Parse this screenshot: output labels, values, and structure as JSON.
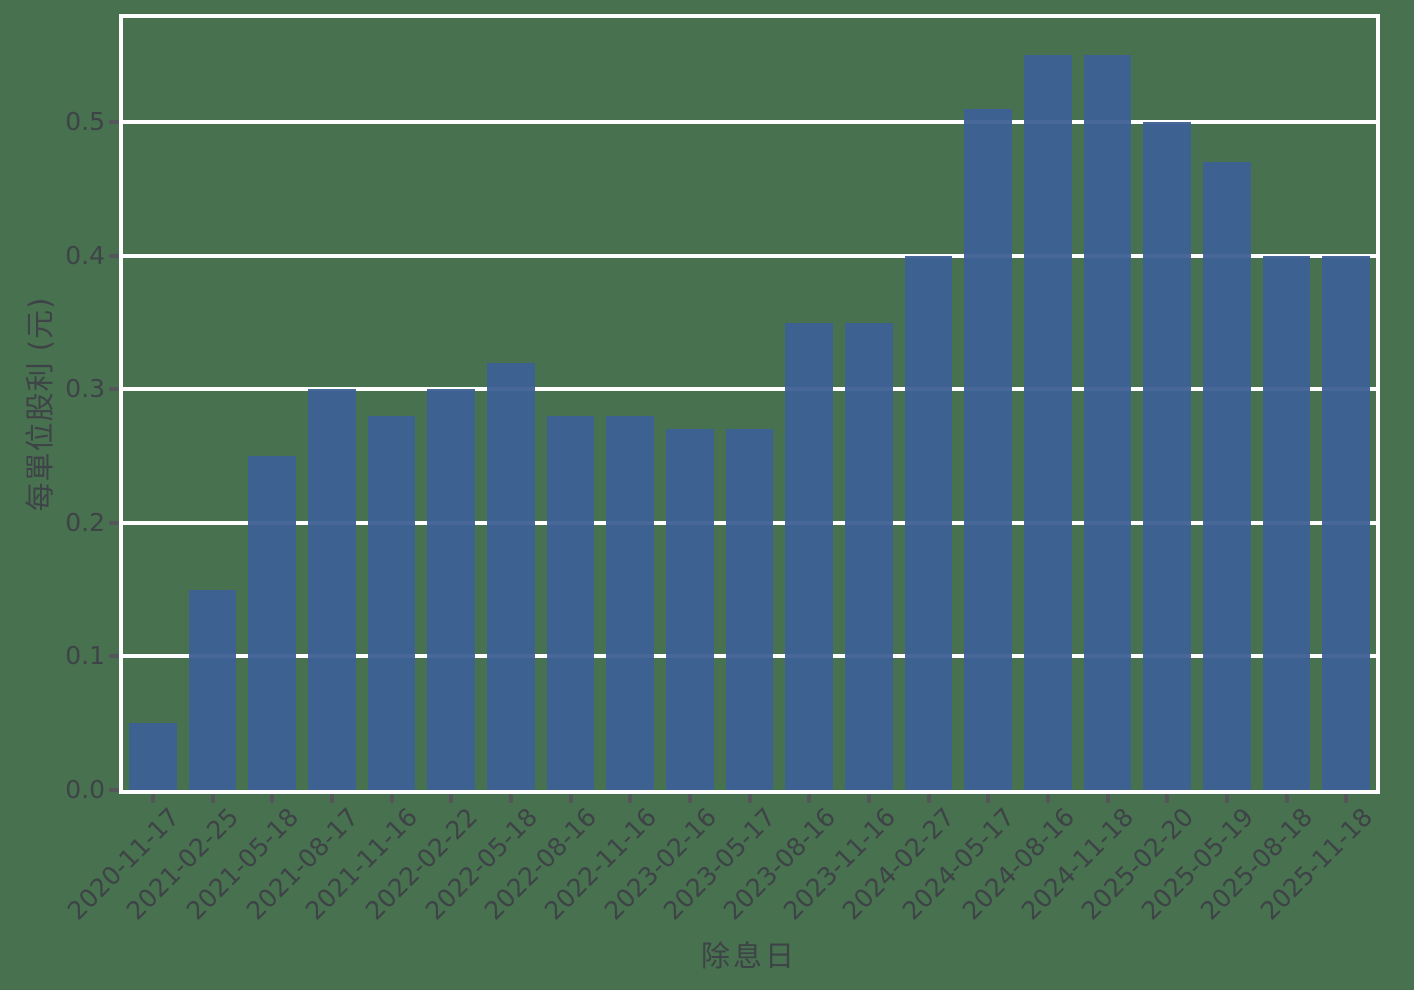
{
  "chart_data": {
    "type": "bar",
    "title": "",
    "xlabel": "除息日",
    "ylabel": "每單位股利 (元)",
    "categories": [
      "2020-11-17",
      "2021-02-25",
      "2021-05-18",
      "2021-08-17",
      "2021-11-16",
      "2022-02-22",
      "2022-05-18",
      "2022-08-16",
      "2022-11-16",
      "2023-02-16",
      "2023-05-17",
      "2023-08-16",
      "2023-11-16",
      "2024-02-27",
      "2024-05-17",
      "2024-08-16",
      "2024-11-18",
      "2025-02-20",
      "2025-05-19",
      "2025-08-18",
      "2025-11-18"
    ],
    "values": [
      0.05,
      0.15,
      0.25,
      0.3,
      0.28,
      0.3,
      0.32,
      0.28,
      0.28,
      0.27,
      0.27,
      0.35,
      0.35,
      0.4,
      0.51,
      0.55,
      0.55,
      0.5,
      0.47,
      0.4,
      0.4
    ],
    "yticks": [
      0.0,
      0.1,
      0.2,
      0.3,
      0.4,
      0.5
    ],
    "ytick_labels": [
      "0.0",
      "0.1",
      "0.2",
      "0.3",
      "0.4",
      "0.5"
    ],
    "ylim": [
      0,
      0.578
    ],
    "xtick_rotation_deg": 45,
    "grid": "horizontal",
    "legend": "none",
    "colors": {
      "background": "#48714f",
      "bar": "#3d6093",
      "grid": "#ffffff",
      "spine": "#ffffff",
      "tick_mark": "#54565a",
      "text": "#3e4347"
    }
  }
}
